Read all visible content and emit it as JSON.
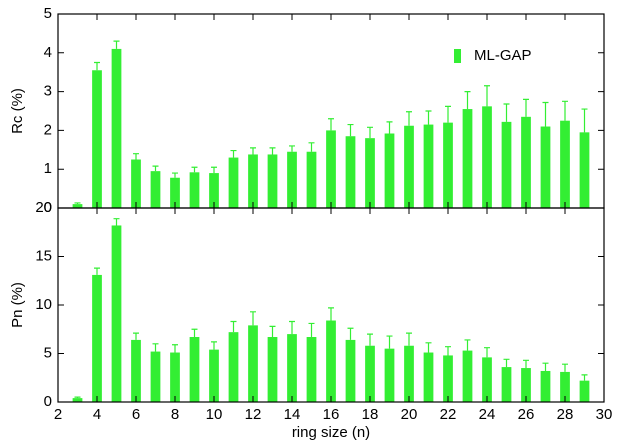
{
  "chart_data": [
    {
      "type": "bar",
      "ylabel": "Rc (%)",
      "legend": "upper right",
      "x": [
        3,
        4,
        5,
        6,
        7,
        8,
        9,
        10,
        11,
        12,
        13,
        14,
        15,
        16,
        17,
        18,
        19,
        20,
        21,
        22,
        23,
        24,
        25,
        26,
        27,
        28,
        29
      ],
      "series": [
        {
          "name": "ML-GAP",
          "color": "#33ee33",
          "values": [
            0.1,
            3.55,
            4.1,
            1.25,
            0.95,
            0.78,
            0.92,
            0.9,
            1.3,
            1.38,
            1.38,
            1.45,
            1.45,
            2.0,
            1.85,
            1.8,
            1.92,
            2.12,
            2.15,
            2.2,
            2.55,
            2.62,
            2.22,
            2.35,
            2.1,
            2.25,
            1.95
          ],
          "errors": [
            0.03,
            0.2,
            0.2,
            0.15,
            0.13,
            0.12,
            0.13,
            0.15,
            0.18,
            0.17,
            0.17,
            0.15,
            0.23,
            0.3,
            0.3,
            0.28,
            0.3,
            0.36,
            0.35,
            0.42,
            0.45,
            0.53,
            0.46,
            0.45,
            0.62,
            0.5,
            0.6
          ]
        }
      ],
      "xlim": [
        2,
        30
      ],
      "xticks": [
        2,
        4,
        6,
        8,
        10,
        12,
        14,
        16,
        18,
        20,
        22,
        24,
        26,
        28,
        30
      ],
      "ylim": [
        0,
        5
      ],
      "yticks": [
        0,
        1,
        2,
        3,
        4,
        5
      ]
    },
    {
      "type": "bar",
      "ylabel": "Pn (%)",
      "xlabel": "ring size (n)",
      "x": [
        3,
        4,
        5,
        6,
        7,
        8,
        9,
        10,
        11,
        12,
        13,
        14,
        15,
        16,
        17,
        18,
        19,
        20,
        21,
        22,
        23,
        24,
        25,
        26,
        27,
        28,
        29
      ],
      "series": [
        {
          "color": "#33ee33",
          "values": [
            0.4,
            13.1,
            18.2,
            6.4,
            5.2,
            5.1,
            6.7,
            5.4,
            7.2,
            7.9,
            6.7,
            7.0,
            6.7,
            8.4,
            6.4,
            5.8,
            5.5,
            5.8,
            5.1,
            4.8,
            5.3,
            4.6,
            3.6,
            3.5,
            3.2,
            3.1,
            2.2
          ],
          "errors": [
            0.1,
            0.7,
            0.7,
            0.7,
            0.8,
            0.8,
            0.8,
            0.8,
            1.1,
            1.4,
            1.1,
            1.3,
            1.4,
            1.3,
            1.2,
            1.2,
            1.3,
            1.3,
            1.0,
            0.9,
            1.1,
            1.0,
            0.8,
            0.8,
            0.8,
            0.8,
            0.6
          ]
        }
      ],
      "xlim": [
        2,
        30
      ],
      "xticks": [
        2,
        4,
        6,
        8,
        10,
        12,
        14,
        16,
        18,
        20,
        22,
        24,
        26,
        28,
        30
      ],
      "ylim": [
        0,
        20
      ],
      "yticks": [
        0,
        5,
        10,
        15,
        20
      ]
    }
  ]
}
